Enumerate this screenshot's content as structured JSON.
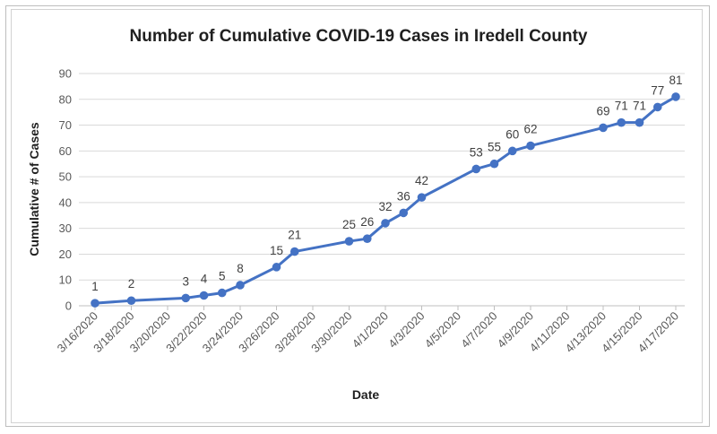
{
  "chart_data": {
    "type": "line",
    "title": "Number of Cumulative COVID-19 Cases in Iredell County",
    "xlabel": "Date",
    "ylabel": "Cumulative # of Cases",
    "ylim": [
      0,
      90
    ],
    "yticks": [
      0,
      10,
      20,
      30,
      40,
      50,
      60,
      70,
      80,
      90
    ],
    "xlim": [
      "3/16/2020",
      "4/17/2020"
    ],
    "xticks": [
      "3/16/2020",
      "3/18/2020",
      "3/20/2020",
      "3/22/2020",
      "3/24/2020",
      "3/26/2020",
      "3/28/2020",
      "3/30/2020",
      "4/1/2020",
      "4/3/2020",
      "4/5/2020",
      "4/7/2020",
      "4/9/2020",
      "4/11/2020",
      "4/13/2020",
      "4/15/2020",
      "4/17/2020"
    ],
    "grid": "horizontal",
    "legend": "none",
    "series_color": "#4472C4",
    "series": [
      {
        "x": [
          "3/16/2020",
          "3/18/2020",
          "3/21/2020",
          "3/22/2020",
          "3/23/2020",
          "3/24/2020",
          "3/26/2020",
          "3/27/2020",
          "3/30/2020",
          "3/31/2020",
          "4/1/2020",
          "4/2/2020",
          "4/3/2020",
          "4/6/2020",
          "4/7/2020",
          "4/8/2020",
          "4/9/2020",
          "4/13/2020",
          "4/14/2020",
          "4/15/2020",
          "4/16/2020",
          "4/17/2020"
        ],
        "values": [
          1,
          2,
          3,
          4,
          5,
          8,
          15,
          21,
          25,
          26,
          32,
          36,
          42,
          53,
          55,
          60,
          62,
          69,
          71,
          71,
          77,
          81
        ]
      }
    ]
  }
}
